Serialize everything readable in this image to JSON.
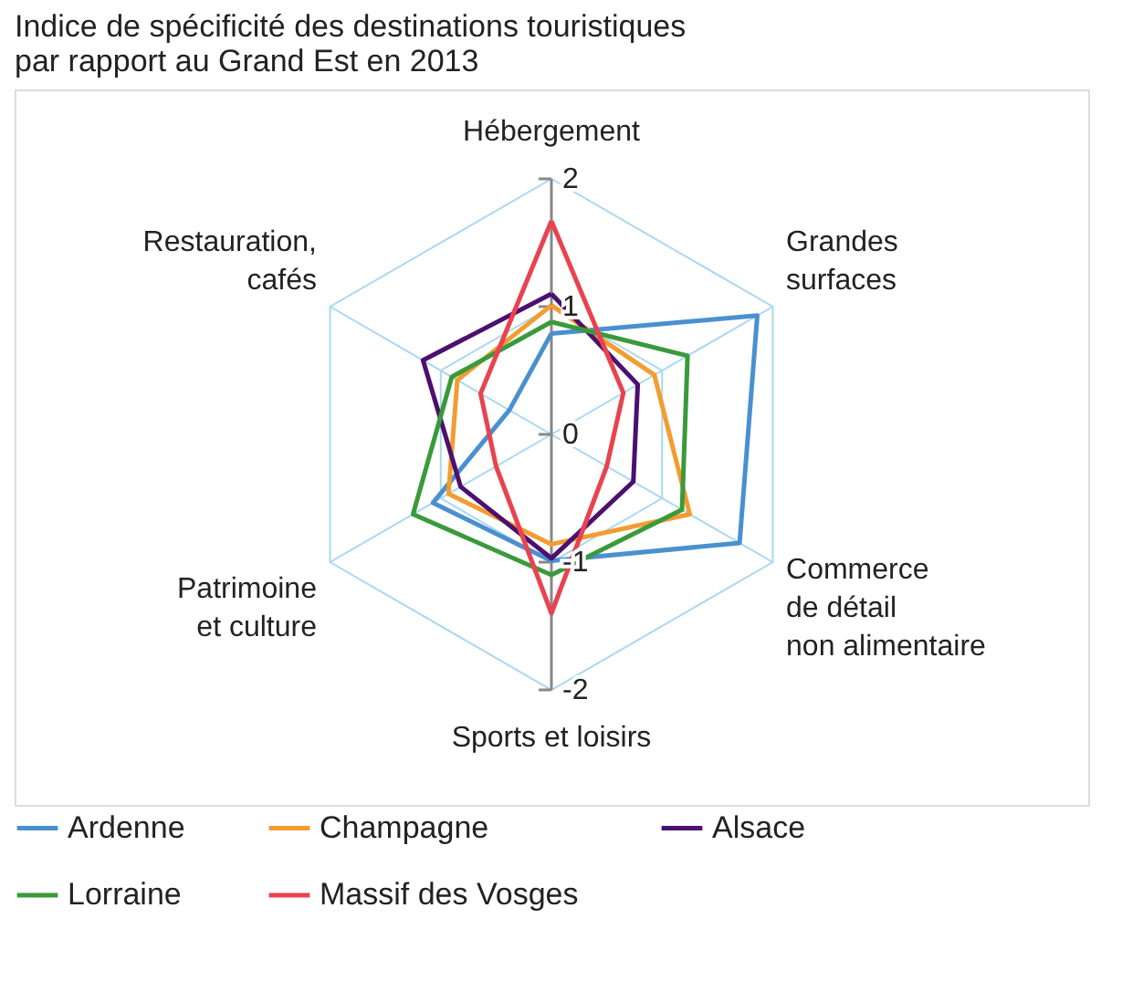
{
  "chart_data": {
    "type": "radar",
    "title": [
      "Indice de spécificité des destinations touristiques",
      "par rapport au Grand Est en 2013"
    ],
    "categories": [
      "Hébergement",
      "Grandes\nsurfaces",
      "Commerce\nde détail\nnon alimentaire",
      "Sports et loisirs",
      "Patrimoine\net culture",
      "Restauration,\ncafés"
    ],
    "series": [
      {
        "name": "Ardenne",
        "color": "#4a90d0",
        "values": [
          0.79,
          1.86,
          1.7,
          0.99,
          1.07,
          0.38
        ]
      },
      {
        "name": "Champagne",
        "color": "#f39c30",
        "values": [
          1.01,
          0.93,
          1.25,
          0.86,
          0.93,
          0.85
        ]
      },
      {
        "name": "Alsace",
        "color": "#4b1070",
        "values": [
          1.1,
          0.78,
          0.74,
          0.97,
          0.82,
          1.16
        ]
      },
      {
        "name": "Lorraine",
        "color": "#3a9a3a",
        "values": [
          0.88,
          1.23,
          1.18,
          1.1,
          1.25,
          0.9
        ]
      },
      {
        "name": "Massif des Vosges",
        "color": "#e8434f",
        "values": [
          1.67,
          0.65,
          0.5,
          1.4,
          0.5,
          0.64
        ]
      }
    ],
    "ylim": [
      0,
      2
    ],
    "yticks": [
      0,
      1,
      2
    ],
    "annotations": [
      "-1",
      "-2"
    ],
    "grid": true,
    "legend": "bottom"
  }
}
